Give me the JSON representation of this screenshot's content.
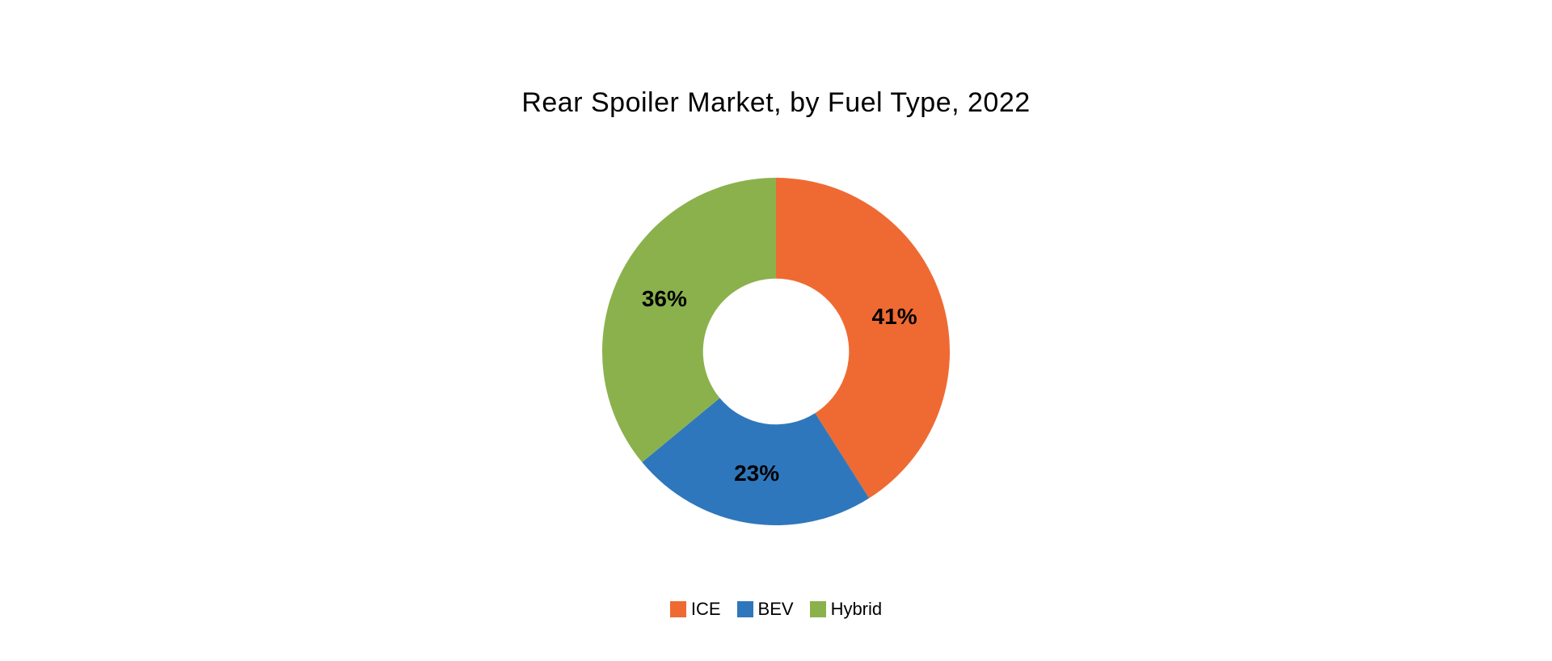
{
  "chart": {
    "type": "donut",
    "title": "Rear Spoiler Market, by Fuel Type, 2022",
    "title_fontsize": 34,
    "title_color": "#000000",
    "background_color": "#ffffff",
    "inner_radius_ratio": 0.42,
    "outer_radius": 215,
    "start_angle_deg": 0,
    "label_fontsize": 28,
    "label_fontweight": "700",
    "label_color": "#000000",
    "legend": {
      "position": "bottom",
      "fontsize": 22,
      "swatch_size": 20
    },
    "slices": [
      {
        "name": "ICE",
        "value": 41,
        "label": "41%",
        "color": "#ef6a32"
      },
      {
        "name": "BEV",
        "value": 23,
        "label": "23%",
        "color": "#2f77bc"
      },
      {
        "name": "Hybrid",
        "value": 36,
        "label": "36%",
        "color": "#8bb14c"
      }
    ]
  }
}
